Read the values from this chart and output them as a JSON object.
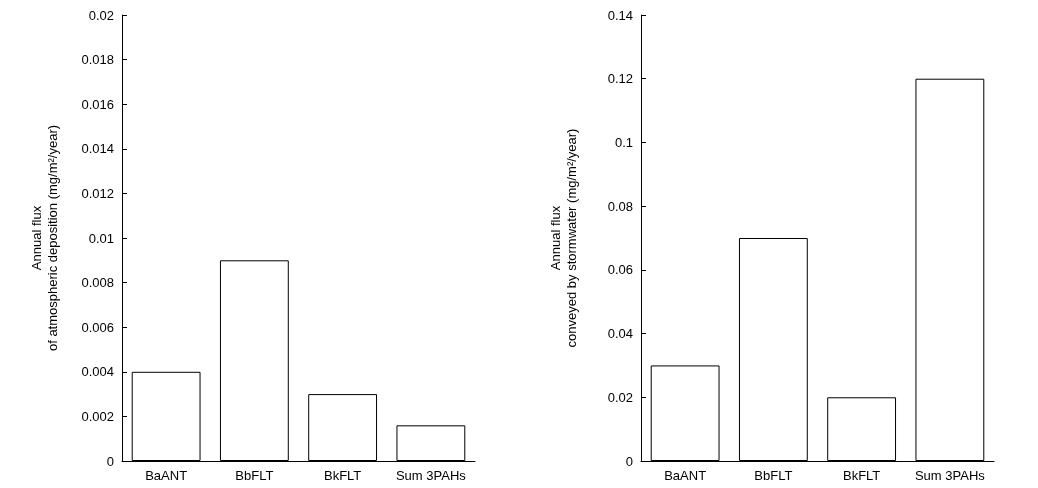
{
  "chart_data": [
    {
      "type": "bar",
      "ylabel": "Annual flux\nof atmospheric deposition (mg/m²/year)",
      "categories": [
        "BaANT",
        "BbFLT",
        "BkFLT",
        "Sum 3PAHs"
      ],
      "values": [
        0.004,
        0.009,
        0.003,
        0.0016
      ],
      "color": "#ffffff",
      "ylim": [
        0,
        0.02
      ],
      "yticks": [
        0,
        0.002,
        0.004,
        0.006,
        0.008,
        0.01,
        0.012,
        0.014,
        0.016,
        0.018,
        0.02
      ],
      "grid": false
    },
    {
      "type": "bar",
      "ylabel": "Annual flux\nconveyed by stormwater (mg/m²/year)",
      "categories": [
        "BaANT",
        "BbFLT",
        "BkFLT",
        "Sum 3PAHs"
      ],
      "values": [
        0.03,
        0.07,
        0.02,
        0.12
      ],
      "color": "#ffffff",
      "ylim": [
        0,
        0.14
      ],
      "yticks": [
        0,
        0.02,
        0.04,
        0.06,
        0.08,
        0.1,
        0.12,
        0.14
      ],
      "grid": false
    }
  ]
}
